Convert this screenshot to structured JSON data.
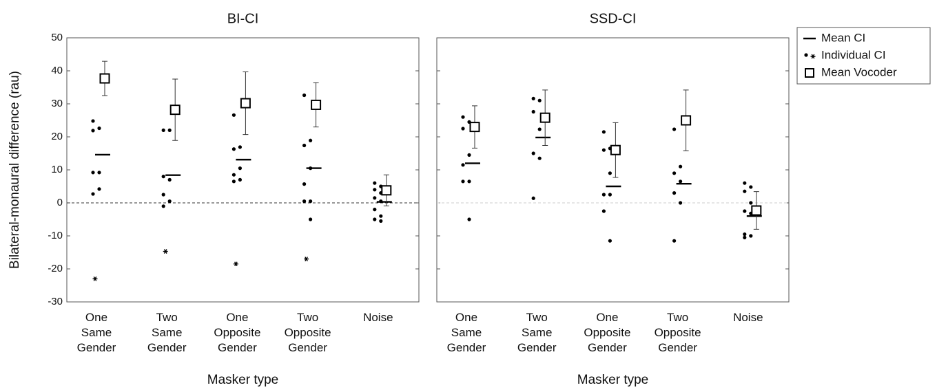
{
  "legend": [
    "Mean CI",
    "Individual CI",
    "Mean Vocoder"
  ],
  "chart_data": [
    {
      "type": "dot",
      "title": "BI-CI",
      "xlabel": "Masker type",
      "ylabel": "Bilateral-monaural difference (rau)",
      "categories": [
        [
          "One",
          "Same",
          "Gender"
        ],
        [
          "Two",
          "Same",
          "Gender"
        ],
        [
          "One",
          "Opposite",
          "Gender"
        ],
        [
          "Two",
          "Opposite",
          "Gender"
        ],
        [
          "Noise"
        ]
      ],
      "ylim": [
        -30,
        50
      ],
      "yticks": [
        -30,
        -20,
        -10,
        0,
        10,
        20,
        30,
        40,
        50
      ],
      "ytick_labels": true,
      "reference_line": 0,
      "reference_color": "#333",
      "mean_ci": [
        14.6,
        8.4,
        13.1,
        10.5,
        0.3
      ],
      "individual_ci": [
        [
          24.8,
          22.6,
          21.9,
          9.2,
          9.2,
          4.2,
          2.7
        ],
        [
          22,
          22,
          8,
          7,
          2.5,
          0.5,
          -1
        ],
        [
          26.6,
          16.9,
          16.3,
          10.5,
          8.5,
          7,
          6.5
        ],
        [
          32.6,
          18.9,
          17.4,
          10.5,
          5.7,
          0.5,
          0.5,
          -5
        ],
        [
          6,
          5,
          4,
          3,
          1.5,
          0.5,
          -2,
          -4,
          -5,
          -5.5
        ]
      ],
      "individual_outliers": [
        -23,
        -14.7,
        -18.5,
        -17,
        null
      ],
      "mean_vocoder": [
        37.7,
        28.2,
        30.2,
        29.7,
        3.8
      ],
      "vocoder_error": [
        5.2,
        9.3,
        9.5,
        6.7,
        4.7
      ]
    },
    {
      "type": "dot",
      "title": "SSD-CI",
      "xlabel": "Masker type",
      "categories": [
        [
          "One",
          "Same",
          "Gender"
        ],
        [
          "Two",
          "Same",
          "Gender"
        ],
        [
          "One",
          "Opposite",
          "Gender"
        ],
        [
          "Two",
          "Opposite",
          "Gender"
        ],
        [
          "Noise"
        ]
      ],
      "ylim": [
        -30,
        50
      ],
      "yticks": [
        -30,
        -20,
        -10,
        0,
        10,
        20,
        30,
        40,
        50
      ],
      "ytick_labels": false,
      "reference_line": 0,
      "reference_color": "#ccc",
      "mean_ci": [
        12,
        19.8,
        5,
        5.8,
        -4
      ],
      "individual_ci": [
        [
          26,
          24.5,
          22.5,
          14.5,
          11.5,
          6.5,
          6.5,
          -5
        ],
        [
          31.6,
          31,
          27.6,
          22.3,
          15,
          13.5,
          1.4
        ],
        [
          21.5,
          16.5,
          16,
          9,
          2.5,
          2.5,
          -2.5,
          -11.5
        ],
        [
          22.3,
          11,
          9,
          6.5,
          3,
          0,
          -11.5
        ],
        [
          6,
          4.8,
          3.5,
          0,
          -2.5,
          -3.2,
          -9.5,
          -10,
          -10.5
        ]
      ],
      "individual_outliers": [
        null,
        null,
        null,
        null,
        null
      ],
      "mean_vocoder": [
        23,
        25.8,
        16,
        25,
        -2.3
      ],
      "vocoder_error": [
        6.4,
        8.4,
        8.3,
        9.2,
        5.7
      ]
    }
  ]
}
